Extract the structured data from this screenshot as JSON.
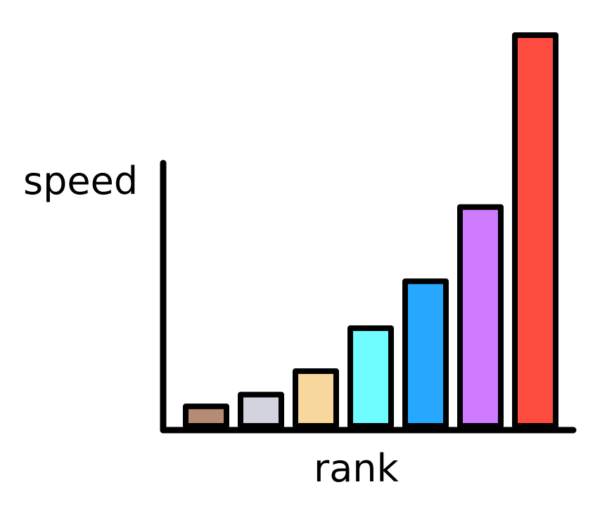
{
  "chart_data": {
    "type": "bar",
    "title": "",
    "xlabel": "rank",
    "ylabel": "speed",
    "categories": [
      "",
      "",
      "",
      "",
      "",
      "",
      ""
    ],
    "values": [
      5,
      8,
      14,
      25,
      37,
      56,
      100
    ],
    "bar_colors": [
      "#b58b73",
      "#d3d3e0",
      "#f7d79b",
      "#6ffcff",
      "#26a8ff",
      "#cf7bff",
      "#ff4c40"
    ],
    "outline_color": "#000000",
    "ylim": [
      0,
      100
    ],
    "grid": false,
    "legend": "none"
  }
}
